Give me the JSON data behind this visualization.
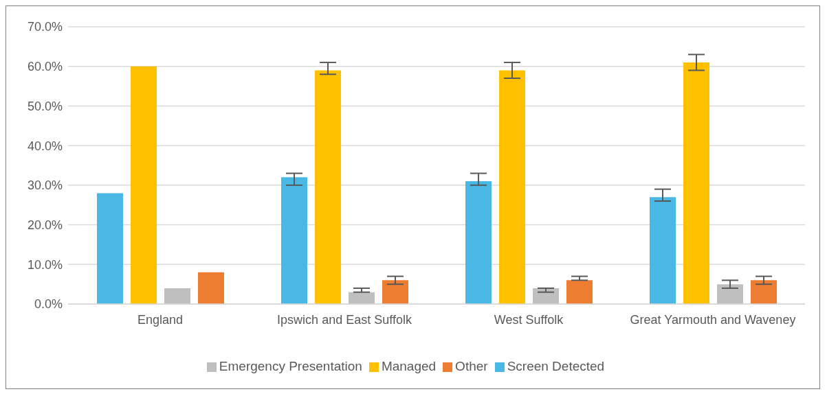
{
  "chart_data": {
    "type": "bar",
    "categories": [
      "England",
      "Ipswich and East Suffolk",
      "West Suffolk",
      "Great Yarmouth and Waveney"
    ],
    "series": [
      {
        "name": "Screen Detected",
        "color": "#4ab8e4",
        "values": [
          28,
          32,
          31,
          27
        ],
        "errors": [
          0,
          [
            30,
            33
          ],
          [
            30,
            33
          ],
          [
            26,
            29
          ]
        ]
      },
      {
        "name": "Managed",
        "color": "#ffc000",
        "values": [
          60,
          59,
          59,
          61
        ],
        "errors": [
          0,
          [
            58,
            61
          ],
          [
            57,
            61
          ],
          [
            59,
            63
          ]
        ]
      },
      {
        "name": "Emergency Presentation",
        "color": "#bfbfbf",
        "values": [
          4,
          3,
          4,
          5
        ],
        "errors": [
          0,
          [
            3,
            4
          ],
          [
            3,
            4
          ],
          [
            4,
            6
          ]
        ]
      },
      {
        "name": "Other",
        "color": "#ed7d31",
        "values": [
          8,
          6,
          6,
          6
        ],
        "errors": [
          0,
          [
            5,
            7
          ],
          [
            6,
            7
          ],
          [
            5,
            7
          ]
        ]
      }
    ],
    "ylim": [
      0,
      70
    ],
    "yticks": [
      {
        "value": 0,
        "label": "0.0%"
      },
      {
        "value": 10,
        "label": "10.0%"
      },
      {
        "value": 20,
        "label": "20.0%"
      },
      {
        "value": 30,
        "label": "30.0%"
      },
      {
        "value": 40,
        "label": "40.0%"
      },
      {
        "value": 50,
        "label": "50.0%"
      },
      {
        "value": 60,
        "label": "60.0%"
      },
      {
        "value": 70,
        "label": "70.0%"
      }
    ],
    "grid": "y",
    "legend": "bottom"
  }
}
